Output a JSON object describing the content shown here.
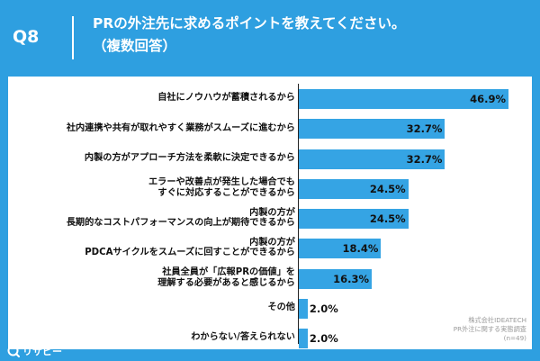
{
  "header": {
    "question_number": "Q8",
    "title_line1": "PRの外注先に求めるポイントを教えてください。",
    "title_line2": "（複数回答）"
  },
  "chart_data": {
    "type": "bar",
    "orientation": "horizontal",
    "categories": [
      [
        "自社にノウハウが蓄積されるから"
      ],
      [
        "社内連携や共有が取れやすく業務がスムーズに進むから"
      ],
      [
        "内製の方がアプローチ方法を柔軟に決定できるから"
      ],
      [
        "エラーや改善点が発生した場合でも",
        "すぐに対応することができるから"
      ],
      [
        "内製の方が",
        "長期的なコストパフォーマンスの向上が期待できるから"
      ],
      [
        "内製の方が",
        "PDCAサイクルをスムーズに回すことができるから"
      ],
      [
        "社員全員が「広報PRの価値」を",
        "理解する必要があると感じるから"
      ],
      [
        "その他"
      ],
      [
        "わからない/答えられない"
      ]
    ],
    "values": [
      46.9,
      32.7,
      32.7,
      24.5,
      24.5,
      18.4,
      16.3,
      2.0,
      2.0
    ],
    "value_labels": [
      "46.9%",
      "32.7%",
      "32.7%",
      "24.5%",
      "24.5%",
      "18.4%",
      "16.3%",
      "2.0%",
      "2.0%"
    ],
    "xlim": [
      0,
      50
    ],
    "bar_color": "#35a4e4",
    "grid": false,
    "legend": "none"
  },
  "source_note": {
    "line1": "株式会社IDEATECH",
    "line2": "PR外注に関する実態調査",
    "line3": "(n=49)"
  },
  "brand": {
    "name": "リサピー",
    "icon": "risapy-logo-icon"
  },
  "colors": {
    "background": "#2e9fe0",
    "panel": "#ffffff",
    "bar": "#35a4e4"
  }
}
